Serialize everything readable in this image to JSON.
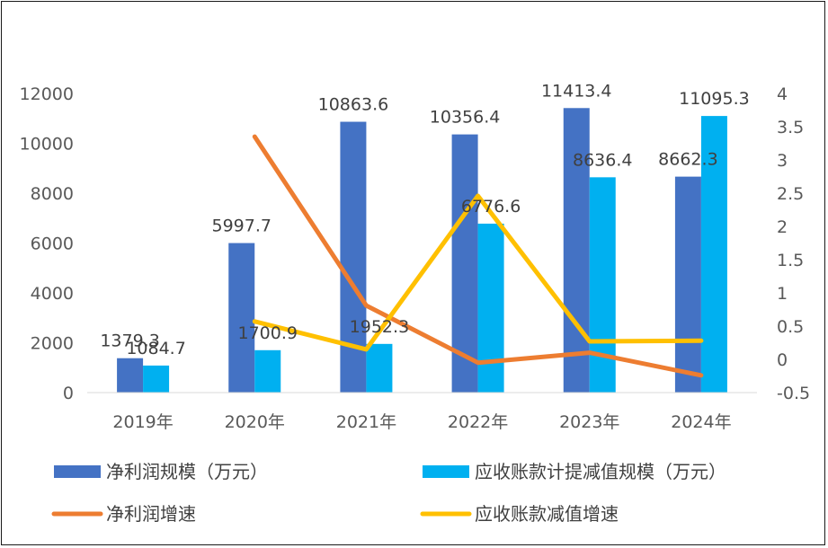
{
  "chart_data": {
    "type": "bar",
    "categories": [
      "2019年",
      "2020年",
      "2021年",
      "2022年",
      "2023年",
      "2024年"
    ],
    "series": [
      {
        "name": "净利润规模（万元）",
        "kind": "bar",
        "axis": "left",
        "color": "#4472C4",
        "values": [
          1379.3,
          5997.7,
          10863.6,
          10356.4,
          11413.4,
          8662.3
        ],
        "labels": [
          "1379.3",
          "5997.7",
          "10863.6",
          "10356.4",
          "11413.4",
          "8662.3"
        ]
      },
      {
        "name": "应收账款计提减值规模（万元）",
        "kind": "bar",
        "axis": "left",
        "color": "#00B0F0",
        "values": [
          1084.7,
          1700.9,
          1952.3,
          6776.6,
          8636.4,
          11095.3
        ],
        "labels": [
          "1084.7",
          "1700.9",
          "1952.3",
          "6776.6",
          "8636.4",
          "11095.3"
        ]
      },
      {
        "name": "净利润增速",
        "kind": "line",
        "axis": "right",
        "color": "#ED7D31",
        "values": [
          null,
          3.35,
          0.81,
          -0.05,
          0.1,
          -0.24
        ]
      },
      {
        "name": "应收账款减值增速",
        "kind": "line",
        "axis": "right",
        "color": "#FFC000",
        "values": [
          null,
          0.57,
          0.15,
          2.46,
          0.27,
          0.28
        ]
      }
    ],
    "ylim": [
      0,
      12000
    ],
    "yticks": [
      "0",
      "2000",
      "4000",
      "6000",
      "8000",
      "10000",
      "12000"
    ],
    "ytick_values": [
      0,
      2000,
      4000,
      6000,
      8000,
      10000,
      12000
    ],
    "y2lim": [
      -0.5,
      4
    ],
    "y2ticks": [
      "-0.5",
      "0",
      "0.5",
      "1",
      "1.5",
      "2",
      "2.5",
      "3",
      "3.5",
      "4"
    ],
    "y2tick_values": [
      -0.5,
      0,
      0.5,
      1,
      1.5,
      2,
      2.5,
      3,
      3.5,
      4
    ],
    "grid": false,
    "legend_position": "bottom"
  }
}
